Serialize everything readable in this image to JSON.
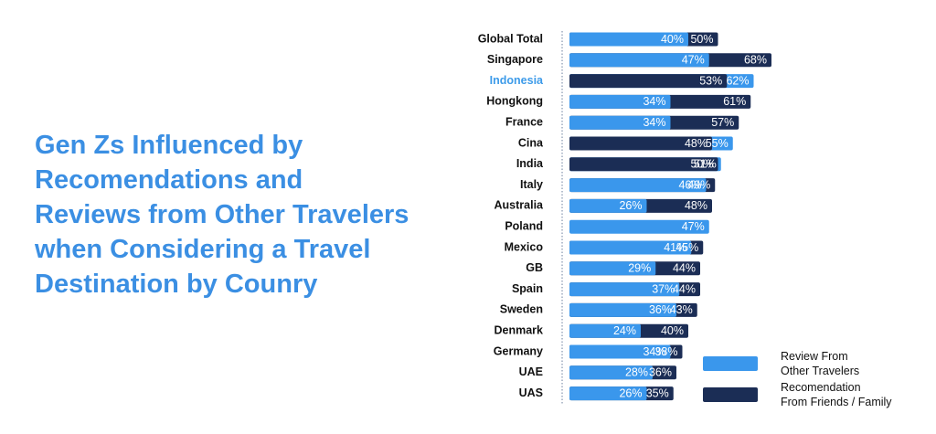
{
  "chart_data": {
    "type": "overlapping-bar",
    "title": "Gen Zs Influenced by\nRecomendations and\nReviews from Other Travelers\nwhen Considering a Travel\nDestination by Counry",
    "categories": [
      "Global Total",
      "Singapore",
      "Indonesia",
      "Hongkong",
      "France",
      "Cina",
      "India",
      "Italy",
      "Australia",
      "Poland",
      "Mexico",
      "GB",
      "Spain",
      "Sweden",
      "Denmark",
      "Germany",
      "UAE",
      "UAS"
    ],
    "highlight": 2,
    "highlight_color": "#3d9be9",
    "series": [
      {
        "name": "Review  From\nOther Travelers",
        "color": "#3a97ec",
        "values": [
          40,
          47,
          62,
          34,
          34,
          55,
          51,
          46,
          26,
          47,
          41,
          29,
          37,
          36,
          24,
          34,
          28,
          26
        ],
        "value_labels": [
          "40%",
          "47%",
          "62%",
          "34%",
          "34%",
          "55%",
          "51%",
          "46%",
          "26%",
          "47%",
          "41%",
          "29%",
          "37%",
          "36%",
          "24%",
          "34%",
          "28%",
          "26%"
        ]
      },
      {
        "name": "Recomendation\nFrom Friends / Family",
        "color": "#1b2d55",
        "values": [
          50,
          68,
          53,
          61,
          57,
          48,
          50,
          49,
          48,
          null,
          45,
          44,
          44,
          43,
          40,
          38,
          36,
          35
        ],
        "value_labels": [
          "50%",
          "68%",
          "53%",
          "61%",
          "57%",
          "48%",
          "50%",
          "49%",
          "48%",
          null,
          "45%",
          "44%",
          "44%",
          "43%",
          "40%",
          "38%",
          "36%",
          "35%"
        ]
      }
    ]
  }
}
